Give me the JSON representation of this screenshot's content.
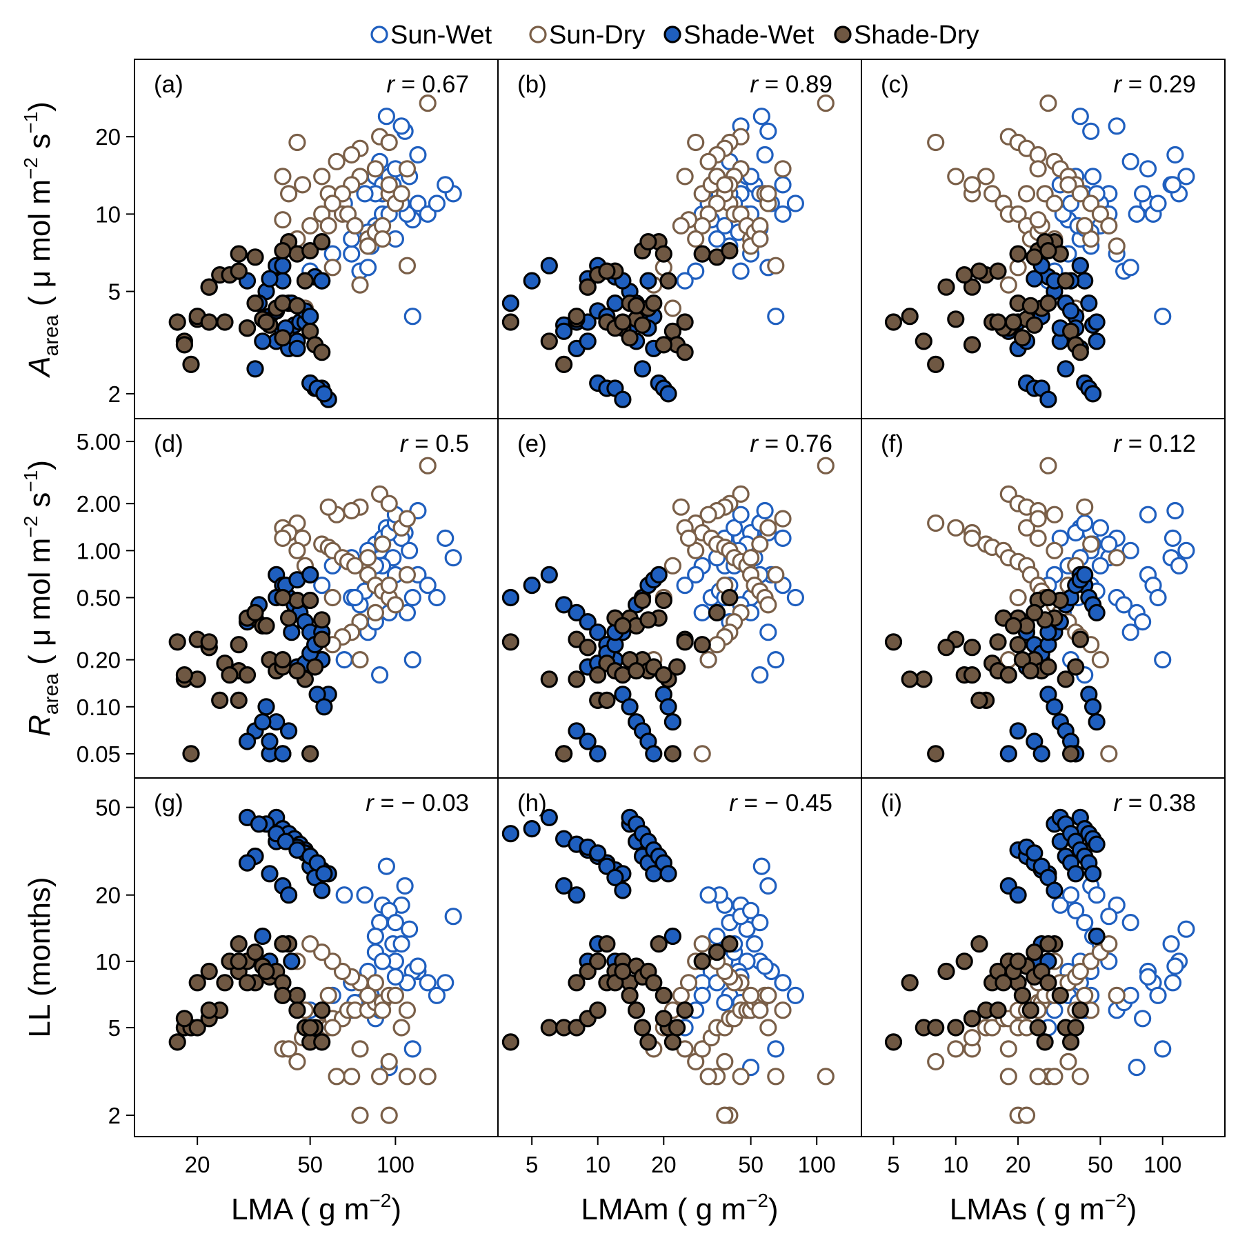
{
  "colors": {
    "sun_wet": "#1f5fbf",
    "sun_dry": "#7a5f48",
    "shade_wet_fill": "#1f5fbf",
    "shade_dry_fill": "#6f5843",
    "marker_edge": "#000000"
  },
  "legend": [
    {
      "key": "sun_wet",
      "label": "Sun-Wet",
      "filled": false
    },
    {
      "key": "sun_dry",
      "label": "Sun-Dry",
      "filled": false
    },
    {
      "key": "shade_wet",
      "label": "Shade-Wet",
      "filled": true
    },
    {
      "key": "shade_dry",
      "label": "Shade-Dry",
      "filled": true
    }
  ],
  "y_axes": [
    {
      "label_main": "A",
      "label_sub": "area",
      "label_unit_pre": " ( μ mol m",
      "label_sup1": "−2",
      "label_mid": " s",
      "label_sup2": "−1",
      "label_end": ")",
      "scale": "log",
      "range": [
        1.6,
        40
      ],
      "ticks": [
        2,
        5,
        10,
        20
      ],
      "tick_labels": [
        "2",
        "5",
        "10",
        "20"
      ]
    },
    {
      "label_main": "R",
      "label_sub": "area",
      "label_unit_pre": " ( μ mol m",
      "label_sup1": "−2",
      "label_mid": " s",
      "label_sup2": "−1",
      "label_end": ")",
      "scale": "log",
      "range": [
        0.035,
        7
      ],
      "ticks": [
        0.05,
        0.1,
        0.2,
        0.5,
        1,
        2,
        5
      ],
      "tick_labels": [
        "0.05",
        "0.10",
        "0.20",
        "0.50",
        "1.00",
        "2.00",
        "5.00"
      ]
    },
    {
      "label_main": "LL (months)",
      "label_sub": "",
      "label_unit_pre": "",
      "label_sup1": "",
      "label_mid": "",
      "label_sup2": "",
      "label_end": "",
      "scale": "log",
      "range": [
        1.6,
        68
      ],
      "ticks": [
        2,
        5,
        10,
        20,
        50
      ],
      "tick_labels": [
        "2",
        "5",
        "10",
        "20",
        "50"
      ]
    }
  ],
  "x_axes": [
    {
      "label_pre": "LMA ( g m",
      "label_sup": "−2",
      "label_end": ")",
      "scale": "log",
      "range": [
        12,
        230
      ],
      "ticks": [
        20,
        50,
        100
      ],
      "tick_labels": [
        "20",
        "50",
        "100"
      ]
    },
    {
      "label_pre": "LMAm ( g m",
      "label_sup": "−2",
      "label_end": ")",
      "scale": "log",
      "range": [
        3.5,
        160
      ],
      "ticks": [
        5,
        10,
        20,
        50,
        100
      ],
      "tick_labels": [
        "5",
        "10",
        "20",
        "50",
        "100"
      ]
    },
    {
      "label_pre": "LMAs ( g m",
      "label_sup": "−2",
      "label_end": ")",
      "scale": "log",
      "range": [
        3.5,
        200
      ],
      "ticks": [
        5,
        10,
        20,
        50,
        100
      ],
      "tick_labels": [
        "5",
        "10",
        "20",
        "50",
        "100"
      ]
    }
  ],
  "panels": [
    {
      "tag": "(a)",
      "r_text": "= 0.67"
    },
    {
      "tag": "(b)",
      "r_text": "= 0.89"
    },
    {
      "tag": "(c)",
      "r_text": "= 0.29"
    },
    {
      "tag": "(d)",
      "r_text": "= 0.5"
    },
    {
      "tag": "(e)",
      "r_text": "= 0.76"
    },
    {
      "tag": "(f)",
      "r_text": "= 0.12"
    },
    {
      "tag": "(g)",
      "r_text": "= − 0.03"
    },
    {
      "tag": "(h)",
      "r_text": "= − 0.45"
    },
    {
      "tag": "(i)",
      "r_text": "= 0.38"
    }
  ],
  "r_symbol": "r",
  "chart_data": {
    "type": "scatter",
    "grid": false,
    "legend_position": "top",
    "panel_layout": "3x3",
    "series": [
      {
        "name": "Sun-Wet",
        "filled": false,
        "LMA": [
          93,
          108,
          105,
          88,
          98,
          90,
          112,
          85,
          120,
          130,
          140,
          160,
          85,
          100,
          115,
          110,
          82,
          70,
          75,
          80,
          90,
          95,
          100,
          105,
          90,
          80,
          70,
          60,
          50,
          55,
          115,
          95,
          85,
          100,
          120,
          150,
          78,
          66,
          72,
          88
        ],
        "LMAm": [
          56,
          60,
          45,
          40,
          52,
          38,
          48,
          35,
          62,
          70,
          80,
          45,
          42,
          55,
          33,
          30,
          40,
          50,
          45,
          60,
          38,
          50,
          55,
          42,
          48,
          44,
          35,
          30,
          28,
          25,
          65,
          50,
          40,
          45,
          58,
          70,
          36,
          32,
          38,
          55
        ],
        "LMAs": [
          40,
          45,
          60,
          70,
          110,
          120,
          130,
          46,
          85,
          90,
          95,
          55,
          50,
          40,
          35,
          33,
          45,
          60,
          65,
          70,
          32,
          38,
          42,
          50,
          55,
          45,
          40,
          35,
          30,
          28,
          100,
          75,
          80,
          85,
          115,
          112,
          48,
          36,
          39,
          42
        ],
        "A": [
          24,
          21,
          22,
          16,
          13,
          12,
          14,
          14,
          11,
          10,
          11,
          12,
          9,
          8,
          9.5,
          10,
          7.5,
          7,
          6,
          6.2,
          13,
          14,
          12,
          11,
          10,
          8.5,
          8,
          7,
          6,
          5.5,
          4,
          10,
          12,
          15,
          17,
          13,
          12,
          11,
          9,
          8.8
        ],
        "R": [
          1.4,
          1.3,
          1.2,
          1,
          0.9,
          0.8,
          1,
          1.1,
          0.7,
          0.6,
          0.5,
          0.9,
          0.8,
          0.7,
          0.5,
          0.4,
          0.6,
          0.5,
          0.45,
          0.3,
          1.2,
          1.3,
          1.5,
          1.4,
          1.1,
          1,
          0.9,
          0.8,
          0.7,
          0.6,
          0.2,
          0.4,
          0.35,
          1.7,
          1.8,
          1.2,
          0.55,
          0.2,
          0.5,
          0.16
        ],
        "LL": [
          27,
          22,
          18,
          15,
          12,
          10,
          14,
          13,
          9,
          8,
          7,
          16,
          11,
          10,
          9,
          8,
          7,
          6,
          6.5,
          7,
          18,
          17,
          15,
          12,
          10,
          9,
          8,
          7,
          6,
          5,
          4,
          3.3,
          5.5,
          8.5,
          9.5,
          8,
          20,
          20,
          6.5,
          6
        ]
      },
      {
        "name": "Sun-Dry",
        "filled": false,
        "LMA": [
          130,
          88,
          95,
          75,
          70,
          62,
          45,
          40,
          42,
          47,
          55,
          58,
          60,
          65,
          68,
          72,
          80,
          85,
          90,
          95,
          100,
          85,
          75,
          70,
          65,
          60,
          55,
          50,
          45,
          40,
          60,
          75,
          80,
          90,
          105,
          110,
          95,
          110,
          48,
          58
        ],
        "LMAm": [
          110,
          45,
          40,
          38,
          35,
          32,
          28,
          25,
          30,
          33,
          35,
          38,
          40,
          42,
          45,
          48,
          50,
          52,
          55,
          58,
          60,
          45,
          42,
          40,
          38,
          35,
          32,
          30,
          28,
          26,
          20,
          18,
          50,
          55,
          60,
          70,
          38,
          65,
          22,
          24
        ],
        "LMAs": [
          28,
          18,
          20,
          22,
          25,
          30,
          8,
          10,
          12,
          12,
          14,
          15,
          17,
          18,
          20,
          22,
          23,
          25,
          26,
          27,
          30,
          32,
          35,
          38,
          40,
          45,
          50,
          55,
          30,
          25,
          20,
          18,
          60,
          45,
          22,
          25,
          35,
          40,
          38,
          42
        ],
        "A": [
          27,
          20,
          19,
          18,
          17,
          16,
          19,
          14,
          12,
          13,
          14,
          12,
          11,
          10,
          10,
          9,
          8,
          8.5,
          9,
          12,
          11,
          15,
          14,
          13,
          12,
          11,
          10,
          9,
          8,
          9.5,
          6.2,
          5.3,
          7.5,
          8,
          12,
          15,
          13,
          6.3,
          4.3,
          9
        ],
        "R": [
          3.5,
          2.3,
          2,
          1.9,
          1.8,
          1.7,
          1.5,
          1.4,
          1.3,
          1.2,
          1.1,
          1.05,
          1,
          0.9,
          0.85,
          0.8,
          0.7,
          0.6,
          0.55,
          0.5,
          0.45,
          0.4,
          0.35,
          0.3,
          0.28,
          0.25,
          0.2,
          0.05,
          1,
          1.2,
          0.5,
          0.2,
          0.9,
          1.1,
          1.4,
          1.6,
          0.6,
          0.7,
          0.8,
          1.9
        ],
        "LL": [
          3,
          3,
          2,
          2,
          3,
          3,
          3.5,
          4,
          4,
          4.5,
          5,
          5,
          5.5,
          5.5,
          6,
          6,
          6,
          6.5,
          6.5,
          7,
          7,
          8,
          8,
          8.5,
          9,
          10,
          11,
          12,
          10,
          8,
          5,
          4,
          7,
          6,
          5,
          6,
          3.5,
          3,
          6,
          7
        ]
      },
      {
        "name": "Shade-Wet",
        "filled": true,
        "LMA": [
          38,
          40,
          42,
          44,
          46,
          48,
          50,
          52,
          55,
          58,
          35,
          38,
          32,
          30,
          36,
          40,
          42,
          45,
          48,
          50,
          52,
          55,
          30,
          33,
          38,
          41,
          45,
          50,
          53,
          56,
          34,
          36,
          40,
          43
        ],
        "LMAm": [
          6,
          5,
          4,
          7,
          8,
          9,
          10,
          11,
          12,
          13,
          14,
          15,
          16,
          17,
          18,
          7,
          8,
          9,
          10,
          11,
          12,
          13,
          14,
          15,
          16,
          17,
          18,
          19,
          20,
          21,
          22,
          9,
          10,
          12
        ],
        "LMAs": [
          40,
          42,
          44,
          46,
          48,
          20,
          22,
          24,
          26,
          28,
          30,
          32,
          34,
          36,
          38,
          18,
          20,
          22,
          24,
          26,
          28,
          30,
          32,
          34,
          36,
          38,
          40,
          42,
          44,
          46,
          48,
          24,
          26,
          28
        ],
        "A": [
          6.3,
          5.5,
          4.5,
          3.7,
          3.8,
          3.8,
          2.2,
          2.1,
          2.1,
          1.9,
          5,
          3.2,
          2.5,
          5.5,
          4,
          3.5,
          3,
          3.2,
          4.2,
          4,
          5.7,
          5.5,
          3.6,
          4.5,
          4.2,
          3.6,
          3,
          2.2,
          2.1,
          2,
          3.2,
          5.6,
          6.3,
          4.5
        ],
        "R": [
          0.7,
          0.6,
          0.5,
          0.45,
          0.4,
          0.35,
          0.3,
          0.25,
          0.2,
          0.12,
          0.1,
          0.08,
          0.07,
          0.06,
          0.05,
          0.05,
          0.07,
          0.18,
          0.19,
          0.22,
          0.25,
          0.3,
          0.35,
          0.45,
          0.5,
          0.6,
          0.65,
          0.7,
          0.12,
          0.1,
          0.08,
          0.06,
          0.05,
          0.3
        ],
        "LL": [
          45,
          40,
          38,
          36,
          34,
          32,
          30,
          28,
          26,
          25,
          42,
          35,
          30,
          28,
          25,
          22,
          20,
          33,
          31,
          27,
          24,
          21,
          45,
          42,
          38,
          35,
          32,
          30,
          28,
          25,
          13,
          10,
          12,
          10
        ]
      },
      {
        "name": "Shade-Dry",
        "filled": true,
        "LMA": [
          17,
          18,
          19,
          20,
          22,
          24,
          25,
          28,
          30,
          32,
          34,
          36,
          38,
          40,
          42,
          45,
          48,
          50,
          52,
          55,
          20,
          22,
          26,
          28,
          30,
          35,
          40,
          45,
          50,
          55,
          18,
          22,
          28,
          32,
          40
        ],
        "LMAm": [
          4,
          6,
          7,
          8,
          9,
          10,
          11,
          12,
          13,
          14,
          15,
          16,
          17,
          18,
          19,
          20,
          21,
          22,
          23,
          25,
          8,
          9,
          10,
          11,
          12,
          13,
          14,
          15,
          16,
          17,
          20,
          25,
          30,
          35,
          40
        ],
        "LMAs": [
          5,
          7,
          8,
          10,
          12,
          14,
          15,
          16,
          18,
          20,
          22,
          24,
          26,
          28,
          30,
          32,
          34,
          36,
          38,
          40,
          6,
          9,
          11,
          13,
          17,
          19,
          21,
          23,
          25,
          27,
          12,
          16,
          20,
          24,
          28
        ],
        "A": [
          3.8,
          3.2,
          2.6,
          3.9,
          5.2,
          5.8,
          3.8,
          6,
          3.6,
          4.5,
          3.9,
          3.7,
          4.3,
          4.5,
          7.8,
          7,
          5.5,
          3.5,
          3.1,
          2.9,
          4,
          5.2,
          5.8,
          6,
          3.6,
          3.8,
          3.3,
          4.4,
          7.2,
          7.8,
          3.1,
          3.8,
          7,
          6.8,
          7.2
        ],
        "R": [
          0.26,
          0.15,
          0.05,
          0.27,
          0.24,
          0.11,
          0.19,
          0.17,
          0.16,
          0.37,
          0.33,
          0.2,
          0.17,
          0.18,
          0.37,
          0.48,
          0.15,
          0.05,
          0.18,
          0.27,
          0.15,
          0.24,
          0.16,
          0.11,
          0.37,
          0.33,
          0.2,
          0.17,
          0.48,
          0.36,
          0.16,
          0.26,
          0.25,
          0.4,
          0.5
        ],
        "LL": [
          4.3,
          5,
          5,
          5,
          5.5,
          6,
          8,
          9,
          10,
          8,
          9.5,
          8.5,
          9,
          8,
          12,
          7,
          5,
          4.3,
          5,
          6,
          8,
          9,
          10,
          12,
          8,
          9,
          7,
          6,
          5,
          4.3,
          5.5,
          6,
          10,
          11,
          12
        ]
      }
    ]
  }
}
